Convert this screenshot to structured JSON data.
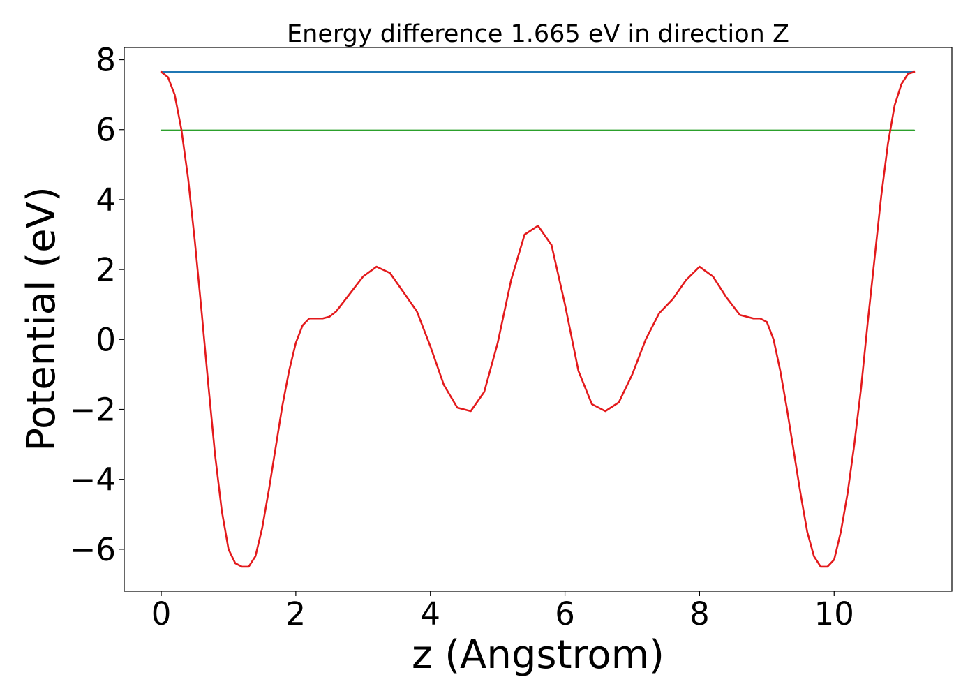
{
  "chart_data": {
    "type": "line",
    "title": "Energy difference 1.665 eV in direction Z",
    "xlabel": "z (Angstrom)",
    "ylabel": "Potential (eV)",
    "xlim": [
      -0.55,
      11.75
    ],
    "ylim": [
      -7.2,
      8.35
    ],
    "xticks": [
      0,
      2,
      4,
      6,
      8,
      10
    ],
    "yticks": [
      -6,
      -4,
      -2,
      0,
      2,
      4,
      6,
      8
    ],
    "xtick_labels": [
      "0",
      "2",
      "4",
      "6",
      "8",
      "10"
    ],
    "ytick_labels": [
      "−6",
      "−4",
      "−2",
      "0",
      "2",
      "4",
      "6",
      "8"
    ],
    "grid": false,
    "legend": "none",
    "series": [
      {
        "color": "#1f77b4",
        "x": [
          0,
          11.19
        ],
        "y": [
          7.65,
          7.65
        ]
      },
      {
        "color": "#2ca02c",
        "x": [
          0,
          11.19
        ],
        "y": [
          5.98,
          5.98
        ]
      },
      {
        "color": "#e31a1c",
        "x": [
          0,
          0.1,
          0.2,
          0.3,
          0.4,
          0.5,
          0.6,
          0.7,
          0.8,
          0.9,
          1.0,
          1.1,
          1.2,
          1.3,
          1.4,
          1.5,
          1.6,
          1.7,
          1.8,
          1.9,
          2.0,
          2.1,
          2.2,
          2.3,
          2.4,
          2.5,
          2.6,
          2.8,
          3.0,
          3.2,
          3.4,
          3.6,
          3.8,
          4.0,
          4.2,
          4.4,
          4.6,
          4.8,
          5.0,
          5.2,
          5.4,
          5.6,
          5.8,
          6.0,
          6.2,
          6.4,
          6.6,
          6.8,
          7.0,
          7.2,
          7.4,
          7.6,
          7.8,
          8.0,
          8.2,
          8.4,
          8.6,
          8.8,
          8.9,
          9.0,
          9.1,
          9.2,
          9.3,
          9.4,
          9.5,
          9.6,
          9.7,
          9.8,
          9.9,
          10.0,
          10.1,
          10.2,
          10.3,
          10.4,
          10.5,
          10.6,
          10.7,
          10.8,
          10.9,
          11.0,
          11.1,
          11.19
        ],
        "y": [
          7.65,
          7.5,
          7.0,
          6.0,
          4.6,
          2.8,
          0.8,
          -1.3,
          -3.3,
          -4.9,
          -6.0,
          -6.4,
          -6.5,
          -6.5,
          -6.2,
          -5.4,
          -4.3,
          -3.1,
          -1.9,
          -0.9,
          -0.1,
          0.4,
          0.6,
          0.6,
          0.6,
          0.65,
          0.8,
          1.3,
          1.8,
          2.08,
          1.9,
          1.35,
          0.8,
          -0.2,
          -1.3,
          -1.95,
          -2.05,
          -1.5,
          -0.1,
          1.7,
          3.0,
          3.25,
          2.7,
          1.0,
          -0.9,
          -1.85,
          -2.05,
          -1.8,
          -1.0,
          0.0,
          0.75,
          1.15,
          1.7,
          2.08,
          1.8,
          1.2,
          0.7,
          0.6,
          0.6,
          0.5,
          0.0,
          -0.9,
          -2.0,
          -3.2,
          -4.4,
          -5.5,
          -6.2,
          -6.5,
          -6.5,
          -6.3,
          -5.5,
          -4.4,
          -3.0,
          -1.4,
          0.5,
          2.3,
          4.1,
          5.6,
          6.7,
          7.3,
          7.6,
          7.65
        ]
      }
    ]
  }
}
